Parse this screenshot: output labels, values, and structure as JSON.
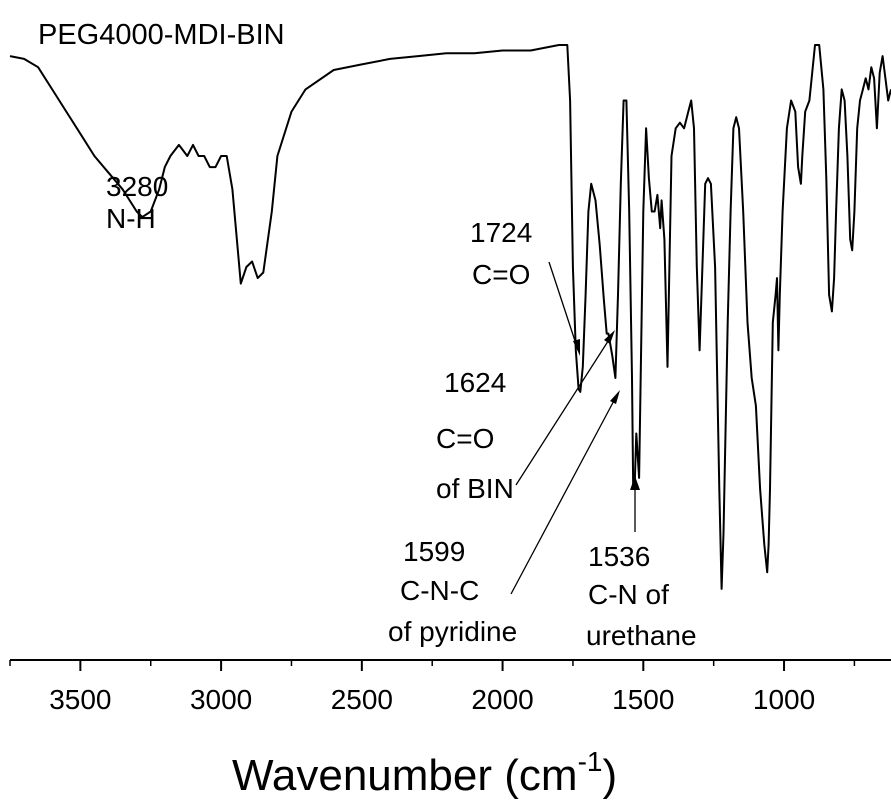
{
  "chart_data": {
    "type": "line",
    "title": "PEG4000-MDI-BIN",
    "xlabel": "Wavenumber (cm",
    "xlabel_sup": "-1",
    "xlabel_close": ")",
    "ylabel": "",
    "xlim": [
      3750,
      620
    ],
    "x_reversed": true,
    "x_major_ticks": [
      3500,
      3000,
      2500,
      2000,
      1500,
      1000
    ],
    "x_tick_labels": [
      "3500",
      "3000",
      "2500",
      "2000",
      "1500",
      "1000"
    ],
    "x_minor_ticks": [
      3750,
      3250,
      2750,
      2250,
      1750,
      1250,
      750
    ],
    "y_units": "arbitrary (transmittance, 0 = baseline top, 1 = deepest)",
    "grid": false,
    "series": [
      {
        "points": [
          [
            3750,
            0.02
          ],
          [
            3700,
            0.025
          ],
          [
            3650,
            0.04
          ],
          [
            3600,
            0.08
          ],
          [
            3550,
            0.12
          ],
          [
            3500,
            0.16
          ],
          [
            3450,
            0.2
          ],
          [
            3400,
            0.23
          ],
          [
            3350,
            0.26
          ],
          [
            3300,
            0.3
          ],
          [
            3280,
            0.31
          ],
          [
            3250,
            0.3
          ],
          [
            3220,
            0.26
          ],
          [
            3200,
            0.22
          ],
          [
            3180,
            0.2
          ],
          [
            3150,
            0.18
          ],
          [
            3120,
            0.2
          ],
          [
            3100,
            0.18
          ],
          [
            3080,
            0.2
          ],
          [
            3060,
            0.2
          ],
          [
            3040,
            0.22
          ],
          [
            3020,
            0.22
          ],
          [
            3000,
            0.2
          ],
          [
            2980,
            0.2
          ],
          [
            2960,
            0.26
          ],
          [
            2930,
            0.43
          ],
          [
            2910,
            0.4
          ],
          [
            2890,
            0.39
          ],
          [
            2870,
            0.42
          ],
          [
            2850,
            0.41
          ],
          [
            2820,
            0.3
          ],
          [
            2800,
            0.2
          ],
          [
            2750,
            0.12
          ],
          [
            2700,
            0.08
          ],
          [
            2600,
            0.045
          ],
          [
            2500,
            0.035
          ],
          [
            2400,
            0.025
          ],
          [
            2300,
            0.02
          ],
          [
            2200,
            0.015
          ],
          [
            2100,
            0.015
          ],
          [
            2000,
            0.01
          ],
          [
            1900,
            0.01
          ],
          [
            1800,
            0.0
          ],
          [
            1770,
            0.0
          ],
          [
            1760,
            0.1
          ],
          [
            1750,
            0.4
          ],
          [
            1740,
            0.55
          ],
          [
            1730,
            0.62
          ],
          [
            1724,
            0.625
          ],
          [
            1715,
            0.58
          ],
          [
            1705,
            0.45
          ],
          [
            1695,
            0.3
          ],
          [
            1685,
            0.25
          ],
          [
            1670,
            0.28
          ],
          [
            1655,
            0.36
          ],
          [
            1640,
            0.46
          ],
          [
            1630,
            0.52
          ],
          [
            1624,
            0.52
          ],
          [
            1610,
            0.56
          ],
          [
            1599,
            0.6
          ],
          [
            1590,
            0.45
          ],
          [
            1580,
            0.25
          ],
          [
            1570,
            0.1
          ],
          [
            1560,
            0.1
          ],
          [
            1550,
            0.3
          ],
          [
            1540,
            0.6
          ],
          [
            1536,
            0.8
          ],
          [
            1530,
            0.78
          ],
          [
            1525,
            0.7
          ],
          [
            1520,
            0.74
          ],
          [
            1515,
            0.78
          ],
          [
            1510,
            0.62
          ],
          [
            1500,
            0.3
          ],
          [
            1490,
            0.15
          ],
          [
            1480,
            0.24
          ],
          [
            1470,
            0.3
          ],
          [
            1460,
            0.3
          ],
          [
            1450,
            0.27
          ],
          [
            1440,
            0.33
          ],
          [
            1435,
            0.28
          ],
          [
            1425,
            0.35
          ],
          [
            1414,
            0.58
          ],
          [
            1400,
            0.2
          ],
          [
            1385,
            0.15
          ],
          [
            1370,
            0.14
          ],
          [
            1355,
            0.15
          ],
          [
            1340,
            0.12
          ],
          [
            1330,
            0.1
          ],
          [
            1320,
            0.15
          ],
          [
            1310,
            0.4
          ],
          [
            1300,
            0.55
          ],
          [
            1290,
            0.4
          ],
          [
            1280,
            0.25
          ],
          [
            1270,
            0.24
          ],
          [
            1260,
            0.25
          ],
          [
            1245,
            0.4
          ],
          [
            1230,
            0.8
          ],
          [
            1222,
            0.98
          ],
          [
            1215,
            0.88
          ],
          [
            1200,
            0.5
          ],
          [
            1190,
            0.3
          ],
          [
            1180,
            0.15
          ],
          [
            1170,
            0.13
          ],
          [
            1160,
            0.15
          ],
          [
            1145,
            0.3
          ],
          [
            1130,
            0.5
          ],
          [
            1115,
            0.6
          ],
          [
            1100,
            0.65
          ],
          [
            1085,
            0.8
          ],
          [
            1070,
            0.9
          ],
          [
            1060,
            0.95
          ],
          [
            1055,
            0.9
          ],
          [
            1050,
            0.8
          ],
          [
            1040,
            0.5
          ],
          [
            1030,
            0.45
          ],
          [
            1025,
            0.42
          ],
          [
            1020,
            0.55
          ],
          [
            1015,
            0.45
          ],
          [
            1005,
            0.3
          ],
          [
            990,
            0.15
          ],
          [
            975,
            0.1
          ],
          [
            960,
            0.12
          ],
          [
            950,
            0.22
          ],
          [
            940,
            0.25
          ],
          [
            935,
            0.2
          ],
          [
            925,
            0.12
          ],
          [
            910,
            0.1
          ],
          [
            900,
            0.05
          ],
          [
            890,
            0.0
          ],
          [
            875,
            0.0
          ],
          [
            860,
            0.08
          ],
          [
            850,
            0.24
          ],
          [
            840,
            0.45
          ],
          [
            830,
            0.48
          ],
          [
            822,
            0.42
          ],
          [
            815,
            0.3
          ],
          [
            805,
            0.15
          ],
          [
            795,
            0.08
          ],
          [
            785,
            0.1
          ],
          [
            775,
            0.2
          ],
          [
            765,
            0.35
          ],
          [
            758,
            0.37
          ],
          [
            750,
            0.3
          ],
          [
            740,
            0.15
          ],
          [
            730,
            0.1
          ],
          [
            720,
            0.08
          ],
          [
            710,
            0.06
          ],
          [
            700,
            0.08
          ],
          [
            690,
            0.04
          ],
          [
            680,
            0.06
          ],
          [
            670,
            0.15
          ],
          [
            660,
            0.05
          ],
          [
            650,
            0.02
          ],
          [
            640,
            0.06
          ],
          [
            630,
            0.1
          ],
          [
            620,
            0.08
          ]
        ]
      }
    ],
    "annotations": [
      {
        "lines": [
          "3280",
          "N-H"
        ]
      },
      {
        "lines": [
          "1724",
          "C=O"
        ]
      },
      {
        "lines": [
          "1624",
          "C=O",
          "of BIN"
        ]
      },
      {
        "lines": [
          "1599",
          "C-N-C",
          "of pyridine"
        ]
      },
      {
        "lines": [
          "1536",
          "C-N of",
          "urethane"
        ]
      }
    ]
  }
}
